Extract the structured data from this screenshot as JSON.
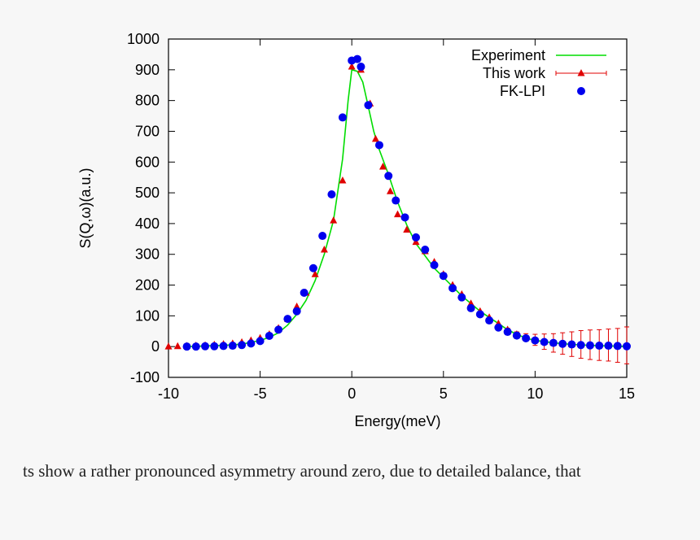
{
  "chart_data": {
    "type": "scatter",
    "xlabel": "Energy(meV)",
    "ylabel": "S(Q,ω)(a.u.)",
    "xlim": [
      -10,
      15
    ],
    "ylim": [
      -100,
      1000
    ],
    "xticks": [
      -10,
      -5,
      0,
      5,
      10,
      15
    ],
    "yticks": [
      -100,
      0,
      100,
      200,
      300,
      400,
      500,
      600,
      700,
      800,
      900,
      1000
    ],
    "grid": false,
    "legend_position": "top-right",
    "series": [
      {
        "name": "Experiment",
        "kind": "line",
        "color": "#00dd00",
        "x": [
          -9,
          -8,
          -7,
          -6,
          -5,
          -4.5,
          -4,
          -3.5,
          -3,
          -2.5,
          -2,
          -1.5,
          -1,
          -0.5,
          -0.2,
          0,
          0.3,
          0.6,
          0.9,
          1.2,
          1.5,
          2,
          2.5,
          3,
          3.5,
          4,
          4.5,
          5,
          5.5,
          6,
          6.5,
          7,
          7.5,
          8,
          8.5,
          9,
          9.5,
          10,
          11,
          12,
          13,
          14,
          15
        ],
        "y": [
          0,
          2,
          4,
          8,
          20,
          30,
          45,
          70,
          105,
          150,
          215,
          300,
          410,
          610,
          800,
          900,
          895,
          860,
          780,
          700,
          640,
          560,
          470,
          395,
          335,
          295,
          255,
          225,
          195,
          165,
          140,
          115,
          95,
          75,
          55,
          40,
          28,
          20,
          12,
          7,
          4,
          2,
          1
        ]
      },
      {
        "name": "This work",
        "kind": "triangle-errorbar",
        "color": "#e00000",
        "x": [
          -10,
          -9.5,
          -9,
          -8.5,
          -8,
          -7.5,
          -7,
          -6.5,
          -6,
          -5.5,
          -5,
          -4.5,
          -4,
          -3.5,
          -3,
          -2.5,
          -2,
          -1.5,
          -1,
          -0.5,
          0,
          0.5,
          1,
          1.3,
          1.7,
          2.1,
          2.5,
          3,
          3.5,
          4,
          4.5,
          5,
          5.5,
          6,
          6.5,
          7,
          7.5,
          8,
          8.5,
          9,
          9.5,
          10,
          10.5,
          11,
          11.5,
          12,
          12.5,
          13,
          13.5,
          14,
          14.5,
          15
        ],
        "y": [
          0,
          1,
          2,
          3,
          4,
          6,
          8,
          10,
          14,
          20,
          28,
          40,
          60,
          90,
          130,
          175,
          235,
          315,
          410,
          540,
          910,
          900,
          790,
          675,
          585,
          505,
          430,
          380,
          340,
          310,
          275,
          235,
          200,
          170,
          140,
          115,
          95,
          75,
          55,
          40,
          30,
          22,
          16,
          12,
          10,
          8,
          7,
          6,
          5,
          5,
          4,
          4
        ],
        "yerr": [
          0,
          0,
          0,
          0,
          0,
          0,
          0,
          0,
          0,
          0,
          0,
          0,
          0,
          0,
          0,
          0,
          0,
          0,
          0,
          0,
          0,
          0,
          0,
          0,
          0,
          0,
          0,
          0,
          0,
          0,
          0,
          0,
          0,
          0,
          0,
          0,
          0,
          0,
          5,
          8,
          12,
          18,
          25,
          30,
          35,
          40,
          45,
          48,
          50,
          52,
          55,
          60
        ]
      },
      {
        "name": "FK-LPI",
        "kind": "circle",
        "color": "#0000ee",
        "x": [
          -9,
          -8.5,
          -8,
          -7.5,
          -7,
          -6.5,
          -6,
          -5.5,
          -5,
          -4.5,
          -4,
          -3.5,
          -3,
          -2.6,
          -2.1,
          -1.6,
          -1.1,
          -0.5,
          0,
          0.3,
          0.5,
          0.9,
          1.5,
          2,
          2.4,
          2.9,
          3.5,
          4,
          4.5,
          5,
          5.5,
          6,
          6.5,
          7,
          7.5,
          8,
          8.5,
          9,
          9.5,
          10,
          10.5,
          11,
          11.5,
          12,
          12.5,
          13,
          13.5,
          14,
          14.5,
          15
        ],
        "y": [
          0,
          0,
          1,
          1,
          2,
          3,
          5,
          10,
          18,
          35,
          55,
          90,
          115,
          175,
          255,
          360,
          495,
          745,
          930,
          935,
          910,
          785,
          655,
          555,
          475,
          420,
          355,
          315,
          265,
          230,
          190,
          160,
          125,
          105,
          85,
          62,
          48,
          36,
          27,
          20,
          15,
          12,
          9,
          7,
          5,
          4,
          3,
          3,
          2,
          1
        ]
      }
    ]
  },
  "caption": "ts show a rather pronounced asymmetry around zero, due to detailed balance, that"
}
